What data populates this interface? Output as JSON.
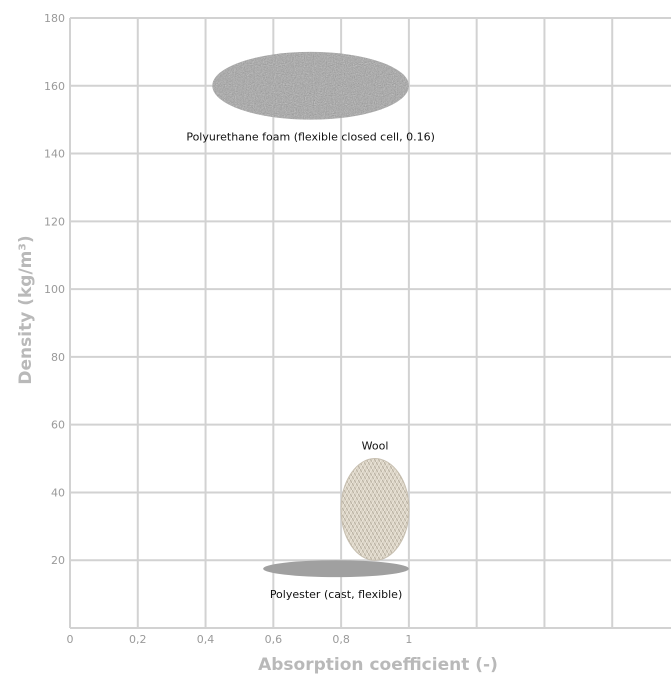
{
  "chart_data": {
    "type": "scatter",
    "xlabel": "Absorption coefficient (-)",
    "ylabel": "Density (kg/m³)",
    "xlim": [
      0,
      1.8
    ],
    "ylim": [
      0,
      180
    ],
    "x_ticks": [
      {
        "value": 0,
        "label": "0"
      },
      {
        "value": 0.2,
        "label": "0,2"
      },
      {
        "value": 0.4,
        "label": "0,4"
      },
      {
        "value": 0.6,
        "label": "0,6"
      },
      {
        "value": 0.8,
        "label": "0,8"
      },
      {
        "value": 1.0,
        "label": "1"
      }
    ],
    "x_gridlines": [
      0,
      0.2,
      0.4,
      0.6,
      0.8,
      1.0,
      1.2,
      1.4,
      1.6,
      1.8
    ],
    "y_ticks": [
      {
        "value": 20,
        "label": "20"
      },
      {
        "value": 40,
        "label": "40"
      },
      {
        "value": 60,
        "label": "60"
      },
      {
        "value": 80,
        "label": "80"
      },
      {
        "value": 100,
        "label": "100"
      },
      {
        "value": 120,
        "label": "120"
      },
      {
        "value": 140,
        "label": "140"
      },
      {
        "value": 160,
        "label": "160"
      },
      {
        "value": 180,
        "label": "180"
      }
    ],
    "grid": true,
    "regions": [
      {
        "name": "Polyurethane foam (flexible closed cell, 0.16)",
        "x_range": [
          0.42,
          1.0
        ],
        "y_range": [
          150,
          170
        ],
        "color": "#a3a3a3",
        "texture": "speckled",
        "label_position": "below"
      },
      {
        "name": "Wool",
        "x_range": [
          0.8,
          1.0
        ],
        "y_range": [
          20,
          50
        ],
        "color": "#dcd5c7",
        "texture": "knit",
        "label_position": "above"
      },
      {
        "name": "Polyester (cast, flexible)",
        "x_range": [
          0.57,
          1.0
        ],
        "y_range": [
          15,
          20
        ],
        "color": "#a0a0a0",
        "texture": "solid",
        "label_position": "below"
      }
    ]
  }
}
